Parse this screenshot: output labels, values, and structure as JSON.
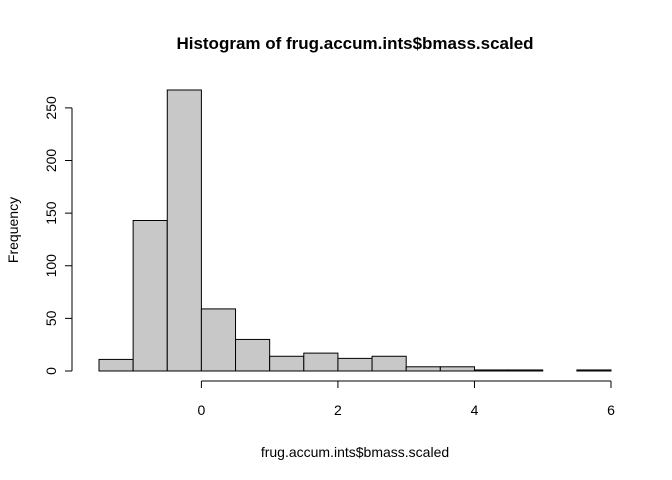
{
  "chart_data": {
    "type": "bar",
    "title": "Histogram of frug.accum.ints$bmass.scaled",
    "xlabel": "frug.accum.ints$bmass.scaled",
    "ylabel": "Frequency",
    "bin_edges": [
      -1.5,
      -1.0,
      -0.5,
      0.0,
      0.5,
      1.0,
      1.5,
      2.0,
      2.5,
      3.0,
      3.5,
      4.0,
      4.5,
      5.0,
      5.5,
      6.0
    ],
    "values": [
      11,
      143,
      267,
      59,
      30,
      14,
      17,
      12,
      14,
      4,
      4,
      1,
      1,
      0,
      1
    ],
    "xlim": [
      -1.5,
      6.0
    ],
    "ylim": [
      0,
      267
    ],
    "xticks": [
      0,
      2,
      4,
      6
    ],
    "xtick_labels": [
      "0",
      "2",
      "4",
      "6"
    ],
    "yticks": [
      0,
      50,
      100,
      150,
      200,
      250
    ],
    "ytick_labels": [
      "0",
      "50",
      "100",
      "150",
      "200",
      "250"
    ],
    "bar_color": "#c8c8c8",
    "grid": false
  }
}
